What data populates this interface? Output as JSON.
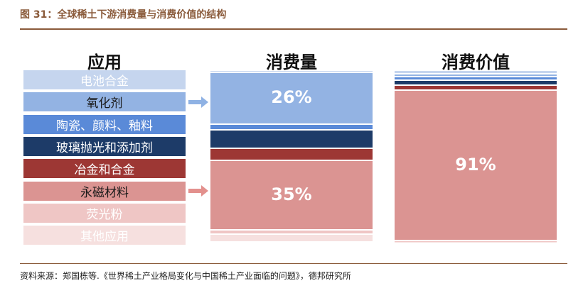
{
  "figure": {
    "title": "图 31：全球稀土下游消费量与消费价值的结构",
    "source": "资料来源：郑国栋等.《世界稀土产业格局变化与中国稀土产业面临的问题》，德邦研究所"
  },
  "chart_data": {
    "type": "stacked-bar",
    "columns": {
      "legend_header": "应用",
      "volume_header": "消费量",
      "value_header": "消费价值"
    },
    "categories": [
      {
        "name": "电池合金",
        "color": "#c5d5ee",
        "text_color": "#ffffff"
      },
      {
        "name": "氧化剂",
        "color": "#93b3e3",
        "text_color": "#1a1a1a"
      },
      {
        "name": "陶瓷、颜料、釉料",
        "color": "#5a8ad8",
        "text_color": "#ffffff"
      },
      {
        "name": "玻璃抛光和添加剂",
        "color": "#1d3b68",
        "text_color": "#ffffff"
      },
      {
        "name": "冶金和合金",
        "color": "#9d3734",
        "text_color": "#ffffff"
      },
      {
        "name": "永磁材料",
        "color": "#db9492",
        "text_color": "#1a1a1a"
      },
      {
        "name": "荧光粉",
        "color": "#efc6c5",
        "text_color": "#ffffff"
      },
      {
        "name": "其他应用",
        "color": "#f6e0df",
        "text_color": "#ffffff"
      }
    ],
    "series": [
      {
        "values": [
          1,
          26,
          3,
          9,
          6,
          35,
          2,
          4
        ]
      },
      {
        "values": [
          2,
          2,
          2,
          3,
          3,
          91,
          0.5,
          0.5
        ]
      }
    ],
    "labels": [
      {
        "series": 0,
        "category": 1,
        "text": "26%"
      },
      {
        "series": 0,
        "category": 5,
        "text": "35%"
      },
      {
        "series": 1,
        "category": 5,
        "text": "91%"
      }
    ],
    "arrows": [
      {
        "category": 1,
        "color": "#8fb2e4"
      },
      {
        "category": 5,
        "color": "#e3908d"
      }
    ]
  }
}
